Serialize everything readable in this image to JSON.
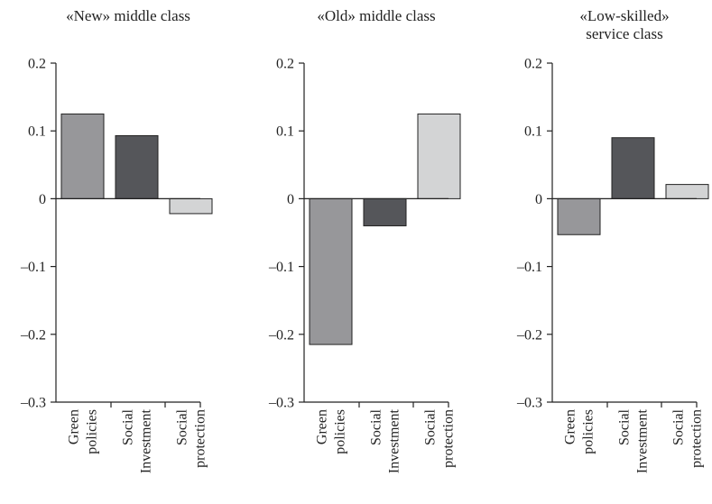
{
  "colors": {
    "green_policies": "#97979a",
    "social_investment": "#55565a",
    "social_protection": "#d3d4d5"
  },
  "chart_data": [
    {
      "type": "bar",
      "title": "«New» middle class",
      "categories": [
        "Green policies",
        "Social Investment",
        "Social protection"
      ],
      "category_lines": [
        [
          "Green",
          "policies"
        ],
        [
          "Social",
          "Investment"
        ],
        [
          "Social",
          "protection"
        ]
      ],
      "values": [
        0.125,
        0.093,
        -0.022
      ],
      "ylim": [
        -0.3,
        0.2
      ],
      "yticks": [
        0.2,
        0.1,
        0,
        -0.1,
        -0.2,
        -0.3
      ],
      "ytick_labels": [
        "0.2",
        "0.1",
        "0",
        "–0.1",
        "–0.2",
        "–0.3"
      ],
      "xlabel": "",
      "ylabel": "",
      "grid": false
    },
    {
      "type": "bar",
      "title": "«Old» middle class",
      "categories": [
        "Green policies",
        "Social Investment",
        "Social protection"
      ],
      "category_lines": [
        [
          "Green",
          "policies"
        ],
        [
          "Social",
          "Investment"
        ],
        [
          "Social",
          "protection"
        ]
      ],
      "values": [
        -0.215,
        -0.04,
        0.125
      ],
      "ylim": [
        -0.3,
        0.2
      ],
      "yticks": [
        0.2,
        0.1,
        0,
        -0.1,
        -0.2,
        -0.3
      ],
      "ytick_labels": [
        "0.2",
        "0.1",
        "0",
        "–0.1",
        "–0.2",
        "–0.3"
      ],
      "xlabel": "",
      "ylabel": "",
      "grid": false
    },
    {
      "type": "bar",
      "title": "«Low-skilled» service class",
      "title_lines": [
        "«Low-skilled»",
        "service class"
      ],
      "categories": [
        "Green policies",
        "Social Investment",
        "Social protection"
      ],
      "category_lines": [
        [
          "Green",
          "policies"
        ],
        [
          "Social",
          "Investment"
        ],
        [
          "Social",
          "protection"
        ]
      ],
      "values": [
        -0.053,
        0.09,
        0.021
      ],
      "ylim": [
        -0.3,
        0.2
      ],
      "yticks": [
        0.2,
        0.1,
        0,
        -0.1,
        -0.2,
        -0.3
      ],
      "ytick_labels": [
        "0.2",
        "0.1",
        "0",
        "–0.1",
        "–0.2",
        "–0.3"
      ],
      "xlabel": "",
      "ylabel": "",
      "grid": false
    }
  ]
}
